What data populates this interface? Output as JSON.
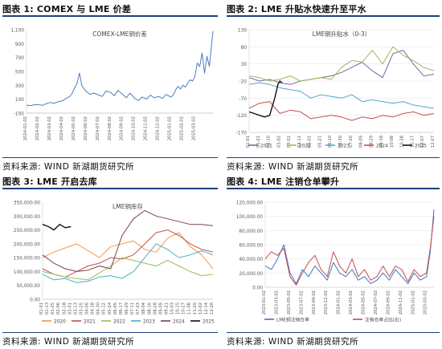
{
  "panels": [
    {
      "id": "p1",
      "heading": "图表 1: COMEX 与 LME 价差",
      "source": "资料来源: WIND  新湖期货研究所",
      "chart_data": {
        "type": "line",
        "title": "COMEX-LME铜价差",
        "yticks": [
          "1,100",
          "900",
          "700",
          "500",
          "300",
          "100",
          "-100"
        ],
        "ylim": [
          -100,
          1150
        ],
        "xticks": [
          "2024-01-02",
          "2024-02-02",
          "2024-03-02",
          "2024-04-02",
          "2024-05-02",
          "2024-06-02",
          "2024-07-02",
          "2024-08-02",
          "2024-09-02",
          "2024-10-02",
          "2024-11-02",
          "2024-12-02",
          "2025-01-02",
          "2025-02-02",
          "2025-03-02"
        ],
        "series": [
          {
            "name": "",
            "color": "#4a7fc1",
            "x": [
              0,
              0.3,
              0.6,
              1,
              1.3,
              1.6,
              2,
              2.3,
              2.6,
              3,
              3.3,
              3.6,
              3.8,
              4,
              4.2,
              4.4,
              4.6,
              4.8,
              5,
              5.3,
              5.6,
              6,
              6.3,
              6.6,
              7,
              7.3,
              7.6,
              8,
              8.3,
              8.6,
              9,
              9.3,
              9.6,
              10,
              10.3,
              10.6,
              11,
              11.3,
              11.6,
              12,
              12.2,
              12.4,
              12.6,
              12.8,
              13,
              13.2,
              13.4,
              13.6,
              13.8,
              14,
              14.2,
              14.4,
              14.6,
              14.8,
              15,
              15.2,
              15.5
            ],
            "values": [
              20,
              10,
              25,
              30,
              15,
              40,
              60,
              45,
              70,
              85,
              120,
              150,
              200,
              280,
              350,
              500,
              310,
              260,
              220,
              180,
              200,
              170,
              150,
              230,
              210,
              160,
              240,
              180,
              130,
              200,
              120,
              90,
              140,
              110,
              170,
              130,
              150,
              120,
              180,
              140,
              170,
              250,
              300,
              260,
              320,
              290,
              350,
              400,
              380,
              450,
              650,
              600,
              800,
              500,
              750,
              600,
              1130
            ]
          }
        ]
      }
    },
    {
      "id": "p2",
      "heading": "图表 2: LME 升贴水快速升至平水",
      "source": "资料来源: WIND  新湖期货研究所",
      "chart_data": {
        "type": "line",
        "title": "LME铜升贴水（0-3）",
        "yticks": [
          "130",
          "80",
          "30",
          "-20",
          "-70",
          "-120",
          "-170"
        ],
        "ylim": [
          -170,
          130
        ],
        "xticks": [
          "01-01",
          "01-21",
          "02-10",
          "03-02",
          "03-22",
          "04-11",
          "05-01",
          "05-21",
          "06-10",
          "06-30",
          "07-20",
          "08-09",
          "08-29",
          "09-18",
          "10-08",
          "10-28",
          "11-17",
          "12-07",
          "12-27"
        ],
        "legend": [
          "2021",
          "2022",
          "2023",
          "2024",
          "2025"
        ],
        "series": [
          {
            "name": "2021",
            "color": "#8064a2",
            "x": [
              0,
              1,
              2,
              3,
              4,
              5,
              6,
              7,
              8,
              9,
              10,
              11,
              12,
              13,
              14,
              15,
              16,
              17,
              18
            ],
            "values": [
              -10,
              -20,
              -15,
              -25,
              -30,
              -20,
              -15,
              -10,
              -5,
              5,
              20,
              35,
              10,
              -10,
              60,
              70,
              30,
              -5,
              0
            ]
          },
          {
            "name": "2022",
            "color": "#9bbb59",
            "x": [
              0,
              1,
              2,
              3,
              4,
              5,
              6,
              7,
              8,
              9,
              10,
              11,
              12,
              13,
              14,
              15,
              16,
              17,
              18
            ],
            "values": [
              -5,
              -10,
              -20,
              -15,
              -5,
              -20,
              -15,
              -10,
              -15,
              20,
              40,
              35,
              70,
              30,
              80,
              55,
              40,
              20,
              10
            ]
          },
          {
            "name": "2023",
            "color": "#4bacc6",
            "x": [
              0,
              1,
              2,
              3,
              4,
              5,
              6,
              7,
              8,
              9,
              10,
              11,
              12,
              13,
              14,
              15,
              16,
              17,
              18
            ],
            "values": [
              -30,
              -25,
              -30,
              -40,
              -45,
              -50,
              -70,
              -60,
              -65,
              -70,
              -60,
              -80,
              -75,
              -80,
              -85,
              -80,
              -90,
              -95,
              -100
            ]
          },
          {
            "name": "2024",
            "color": "#c0504d",
            "x": [
              0,
              1,
              2,
              3,
              4,
              5,
              6,
              7,
              8,
              9,
              10,
              11,
              12,
              13,
              14,
              15,
              16,
              17,
              18
            ],
            "values": [
              -100,
              -85,
              -80,
              -115,
              -105,
              -110,
              -130,
              -125,
              -120,
              -125,
              -135,
              -125,
              -130,
              -120,
              -125,
              -115,
              -110,
              -120,
              -115
            ]
          },
          {
            "name": "2025",
            "color": "#111111",
            "x": [
              0,
              0.5,
              1,
              1.5,
              2,
              2.5,
              2.8,
              3,
              3.2
            ],
            "values": [
              -110,
              -115,
              -120,
              -125,
              -120,
              -70,
              -30,
              -20,
              -25
            ]
          }
        ]
      }
    },
    {
      "id": "p3",
      "heading": "图表 3: LME 开启去库",
      "source": "资料来源: WIND  新湖期货研究所",
      "chart_data": {
        "type": "line",
        "title": "LME铜库存",
        "yticks": [
          "350,000.00",
          "300,000.00",
          "250,000.00",
          "200,000.00",
          "150,000.00",
          "100,000.00",
          "50,000.00",
          "0.00"
        ],
        "ylim": [
          0,
          350000
        ],
        "xticks": [
          "01-01",
          "01-13",
          "01-25",
          "02-06",
          "02-18",
          "03-01",
          "03-13",
          "03-25",
          "04-06",
          "04-18",
          "04-30",
          "05-12",
          "05-24",
          "06-05",
          "06-17",
          "06-29",
          "07-11",
          "07-23",
          "08-04",
          "08-16",
          "08-28",
          "09-09",
          "09-21",
          "10-03",
          "10-15",
          "10-27",
          "11-08",
          "11-20",
          "12-02",
          "12-14",
          "12-26"
        ],
        "legend": [
          "2020",
          "2021",
          "2022",
          "2023",
          "2024",
          "2025"
        ],
        "series": [
          {
            "name": "2020",
            "color": "#f79646",
            "x": [
              0,
              2,
              4,
              6,
              8,
              10,
              12,
              14,
              16,
              18,
              20,
              22,
              24,
              26,
              28,
              30
            ],
            "values": [
              150000,
              170000,
              185000,
              200000,
              175000,
              150000,
              190000,
              200000,
              210000,
              180000,
              170000,
              220000,
              240000,
              190000,
              160000,
              110000
            ]
          },
          {
            "name": "2021",
            "color": "#c0504d",
            "x": [
              0,
              2,
              4,
              6,
              8,
              10,
              12,
              14,
              16,
              18,
              20,
              22,
              24,
              26,
              28,
              30
            ],
            "values": [
              110000,
              90000,
              80000,
              100000,
              120000,
              130000,
              150000,
              145000,
              160000,
              200000,
              240000,
              250000,
              230000,
              200000,
              180000,
              170000
            ]
          },
          {
            "name": "2022",
            "color": "#9bbb59",
            "x": [
              0,
              2,
              4,
              6,
              8,
              10,
              12,
              14,
              16,
              18,
              20,
              22,
              24,
              26,
              28,
              30
            ],
            "values": [
              100000,
              90000,
              80000,
              75000,
              70000,
              95000,
              120000,
              150000,
              140000,
              130000,
              120000,
              140000,
              120000,
              100000,
              85000,
              90000
            ]
          },
          {
            "name": "2023",
            "color": "#4bacc6",
            "x": [
              0,
              2,
              4,
              6,
              8,
              10,
              12,
              14,
              16,
              18,
              20,
              22,
              24,
              26,
              28,
              30
            ],
            "values": [
              90000,
              70000,
              75000,
              60000,
              65000,
              80000,
              85000,
              75000,
              100000,
              150000,
              200000,
              180000,
              150000,
              160000,
              175000,
              160000
            ]
          },
          {
            "name": "2024",
            "color": "#7f3f4a",
            "x": [
              0,
              2,
              4,
              6,
              8,
              10,
              12,
              14,
              16,
              18,
              20,
              22,
              24,
              26,
              28,
              30
            ],
            "values": [
              160000,
              130000,
              110000,
              100000,
              105000,
              120000,
              110000,
              230000,
              290000,
              320000,
              300000,
              290000,
              280000,
              270000,
              270000,
              265000
            ]
          },
          {
            "name": "2025",
            "color": "#111111",
            "x": [
              0,
              1,
              2,
              3,
              4,
              5
            ],
            "values": [
              270000,
              262000,
              250000,
              270000,
              258000,
              262000
            ]
          }
        ]
      }
    },
    {
      "id": "p4",
      "heading": "图表 4: LME 注销仓单攀升",
      "source": "资料来源: WIND  新湖期货研究所",
      "chart_data": {
        "type": "line",
        "title": "",
        "yticks": [
          "120,000.00",
          "100,000.00",
          "80,000.00",
          "60,000.00",
          "40,000.00",
          "20,000.00",
          "0.00"
        ],
        "ylim": [
          0,
          120000
        ],
        "xticks": [
          "2023-01-02",
          "2023-03-02",
          "2023-05-02",
          "2023-07-02",
          "2023-09-02",
          "2023-11-02",
          "2024-01-02",
          "2024-03-02",
          "2024-05-02",
          "2024-07-02",
          "2024-09-02",
          "2024-11-02",
          "2025-01-02",
          "2025-03-02"
        ],
        "legend": [
          "LME铜注销仓单",
          "注销仓单占比(右)"
        ],
        "series": [
          {
            "name": "LME铜注销仓单",
            "color": "#4472c4",
            "x": [
              0,
              0.5,
              1,
              1.5,
              2,
              2.5,
              3,
              3.5,
              4,
              4.5,
              5,
              5.5,
              6,
              6.5,
              7,
              7.5,
              8,
              8.5,
              9,
              9.5,
              10,
              10.5,
              11,
              11.5,
              12,
              12.5,
              13,
              13.3,
              13.6
            ],
            "values": [
              30000,
              25000,
              40000,
              60000,
              20000,
              5000,
              25000,
              15000,
              30000,
              20000,
              10000,
              35000,
              20000,
              15000,
              25000,
              10000,
              15000,
              5000,
              10000,
              20000,
              10000,
              25000,
              15000,
              5000,
              20000,
              10000,
              15000,
              50000,
              110000
            ]
          },
          {
            "name": "注销仓单占比(右)",
            "color": "#c0504d",
            "x": [
              0,
              0.5,
              1,
              1.5,
              2,
              2.5,
              3,
              3.5,
              4,
              4.5,
              5,
              5.5,
              6,
              6.5,
              7,
              7.5,
              8,
              8.5,
              9,
              9.5,
              10,
              10.5,
              11,
              11.5,
              12,
              12.5,
              13,
              13.3,
              13.6
            ],
            "values": [
              40000,
              50000,
              45000,
              55000,
              15000,
              3000,
              20000,
              35000,
              45000,
              25000,
              15000,
              50000,
              30000,
              20000,
              40000,
              15000,
              25000,
              10000,
              15000,
              30000,
              15000,
              30000,
              25000,
              8000,
              25000,
              15000,
              20000,
              55000,
              100000
            ]
          }
        ]
      }
    }
  ]
}
